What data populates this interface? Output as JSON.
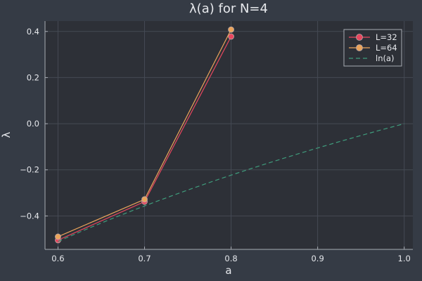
{
  "chart_data": {
    "type": "line",
    "title": "λ(a) for N=4",
    "xlabel": "a",
    "ylabel": "λ",
    "xlim": [
      0.585,
      1.01
    ],
    "ylim": [
      -0.545,
      0.445
    ],
    "xticks": [
      0.6,
      0.7,
      0.8,
      0.9,
      1.0
    ],
    "xtick_labels": [
      "0.6",
      "0.7",
      "0.8",
      "0.9",
      "1.0"
    ],
    "yticks": [
      -0.4,
      -0.2,
      0.0,
      0.2,
      0.4
    ],
    "ytick_labels": [
      "−0.4",
      "−0.2",
      "0.0",
      "0.2",
      "0.4"
    ],
    "grid": true,
    "legend_position": "top-right",
    "series": [
      {
        "name": "L=32",
        "color": "#e8475f",
        "marker": "circle",
        "style": "solid",
        "x": [
          0.6,
          0.7,
          0.8
        ],
        "y": [
          -0.505,
          -0.338,
          0.378
        ]
      },
      {
        "name": "L=64",
        "color": "#eba45b",
        "marker": "circle",
        "style": "solid",
        "x": [
          0.6,
          0.7,
          0.8
        ],
        "y": [
          -0.49,
          -0.328,
          0.408
        ]
      },
      {
        "name": "ln(a)",
        "color": "#3f9c7c",
        "marker": "none",
        "style": "dashed",
        "function": "ln",
        "x_range": [
          0.6,
          1.0
        ]
      }
    ]
  },
  "colors": {
    "background": "#353b45",
    "plot_area": "#2d3037",
    "grid": "#454a54",
    "axis": "#a8acb3",
    "text": "#e6e8ec"
  }
}
